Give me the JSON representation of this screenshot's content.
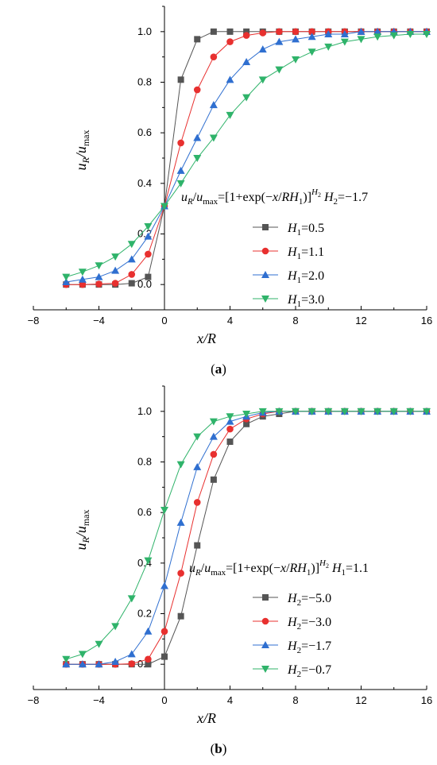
{
  "chart_data": [
    {
      "type": "line",
      "panel_label": "(a)",
      "xlabel": "x/R",
      "ylabel": "u_R/u_max",
      "xlim": [
        -8,
        16
      ],
      "ylim": [
        -0.1,
        1.1
      ],
      "x_ticks": [
        "−8",
        "−4",
        "0",
        "4",
        "8",
        "12",
        "16"
      ],
      "y_ticks": [
        "0.0",
        "0.2",
        "0.4",
        "0.6",
        "0.8",
        "1.0"
      ],
      "formula": {
        "lhs": "u_R/u_max=[1+exp(−x/RH_1)]^H_2",
        "param": "H_2=−1.7"
      },
      "x": [
        -6,
        -5,
        -4,
        -3,
        -2,
        -1,
        0,
        1,
        2,
        3,
        4,
        5,
        6,
        7,
        8,
        9,
        10,
        11,
        12,
        13,
        14,
        15,
        16
      ],
      "series": [
        {
          "name": "H_1=0.5",
          "marker": "square",
          "color": "#555555",
          "legend_label": "=0.5",
          "legend_sym": "H",
          "legend_sub": "1",
          "values": [
            0.0,
            0.0,
            0.0,
            0.0,
            0.005,
            0.03,
            0.31,
            0.81,
            0.97,
            1.0,
            1.0,
            1.0,
            1.0,
            1.0,
            1.0,
            1.0,
            1.0,
            1.0,
            1.0,
            1.0,
            1.0,
            1.0,
            1.0
          ]
        },
        {
          "name": "H_1=1.1",
          "marker": "circle",
          "color": "#e8302f",
          "legend_label": "=1.1",
          "legend_sym": "H",
          "legend_sub": "1",
          "values": [
            0.0,
            0.0,
            0.002,
            0.005,
            0.04,
            0.12,
            0.31,
            0.56,
            0.77,
            0.9,
            0.96,
            0.985,
            0.995,
            1.0,
            1.0,
            1.0,
            1.0,
            1.0,
            1.0,
            1.0,
            1.0,
            1.0,
            1.0
          ]
        },
        {
          "name": "H_1=2.0",
          "marker": "triangle-up",
          "color": "#2f6fd0",
          "legend_label": "=2.0",
          "legend_sym": "H",
          "legend_sub": "1",
          "values": [
            0.01,
            0.02,
            0.03,
            0.055,
            0.1,
            0.19,
            0.31,
            0.45,
            0.58,
            0.71,
            0.81,
            0.88,
            0.93,
            0.96,
            0.97,
            0.98,
            0.99,
            0.99,
            1.0,
            1.0,
            1.0,
            1.0,
            1.0
          ]
        },
        {
          "name": "H_1=3.0",
          "marker": "triangle-down",
          "color": "#2fb36a",
          "legend_label": "=3.0",
          "legend_sym": "H",
          "legend_sub": "1",
          "values": [
            0.03,
            0.05,
            0.075,
            0.11,
            0.16,
            0.23,
            0.31,
            0.4,
            0.5,
            0.58,
            0.67,
            0.74,
            0.81,
            0.85,
            0.89,
            0.92,
            0.94,
            0.96,
            0.97,
            0.98,
            0.985,
            0.99,
            0.99
          ]
        }
      ]
    },
    {
      "type": "line",
      "panel_label": "(b)",
      "xlabel": "x/R",
      "ylabel": "u_R/u_max",
      "xlim": [
        -8,
        16
      ],
      "ylim": [
        -0.1,
        1.1
      ],
      "x_ticks": [
        "−8",
        "−4",
        "0",
        "4",
        "8",
        "12",
        "16"
      ],
      "y_ticks": [
        "0.0",
        "0.2",
        "0.4",
        "0.6",
        "0.8",
        "1.0"
      ],
      "formula": {
        "lhs": "u_R/u_max=[1+exp(−x/RH_1)]^H_2",
        "param": "H_1=1.1"
      },
      "x": [
        -6,
        -5,
        -4,
        -3,
        -2,
        -1,
        0,
        1,
        2,
        3,
        4,
        5,
        6,
        7,
        8,
        9,
        10,
        11,
        12,
        13,
        14,
        15,
        16
      ],
      "series": [
        {
          "name": "H_2=−5.0",
          "marker": "square",
          "color": "#555555",
          "legend_label": "=−5.0",
          "legend_sym": "H",
          "legend_sub": "2",
          "values": [
            0.0,
            0.0,
            0.0,
            0.0,
            0.0,
            0.0,
            0.03,
            0.19,
            0.47,
            0.73,
            0.88,
            0.95,
            0.98,
            0.99,
            1.0,
            1.0,
            1.0,
            1.0,
            1.0,
            1.0,
            1.0,
            1.0,
            1.0
          ]
        },
        {
          "name": "H_2=−3.0",
          "marker": "circle",
          "color": "#e8302f",
          "legend_label": "=−3.0",
          "legend_sym": "H",
          "legend_sub": "2",
          "values": [
            0.0,
            0.0,
            0.0,
            0.0,
            0.002,
            0.02,
            0.13,
            0.36,
            0.64,
            0.83,
            0.93,
            0.97,
            0.99,
            1.0,
            1.0,
            1.0,
            1.0,
            1.0,
            1.0,
            1.0,
            1.0,
            1.0,
            1.0
          ]
        },
        {
          "name": "H_2=−1.7",
          "marker": "triangle-up",
          "color": "#2f6fd0",
          "legend_label": "=−1.7",
          "legend_sym": "H",
          "legend_sub": "2",
          "values": [
            0.0,
            0.0,
            0.0,
            0.01,
            0.04,
            0.13,
            0.31,
            0.56,
            0.78,
            0.9,
            0.96,
            0.98,
            0.995,
            1.0,
            1.0,
            1.0,
            1.0,
            1.0,
            1.0,
            1.0,
            1.0,
            1.0,
            1.0
          ]
        },
        {
          "name": "H_2=−0.7",
          "marker": "triangle-down",
          "color": "#2fb36a",
          "legend_label": "=−0.7",
          "legend_sym": "H",
          "legend_sub": "2",
          "values": [
            0.02,
            0.04,
            0.08,
            0.15,
            0.26,
            0.41,
            0.61,
            0.79,
            0.9,
            0.96,
            0.98,
            0.99,
            1.0,
            1.0,
            1.0,
            1.0,
            1.0,
            1.0,
            1.0,
            1.0,
            1.0,
            1.0,
            1.0
          ]
        }
      ]
    }
  ]
}
